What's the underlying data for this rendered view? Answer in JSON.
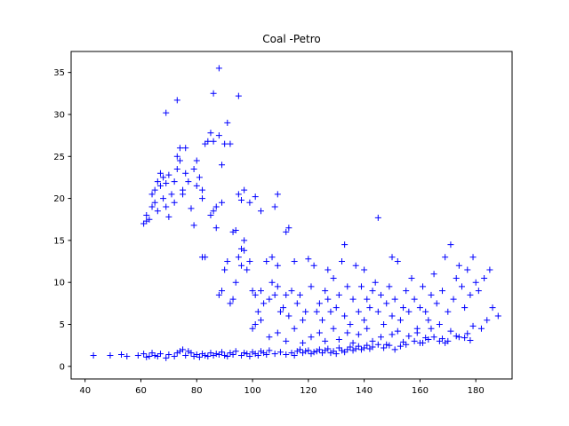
{
  "chart_data": {
    "type": "scatter",
    "title": "Coal -Petro",
    "xlabel": "",
    "ylabel": "",
    "xlim": [
      35,
      193
    ],
    "ylim": [
      -1.5,
      37.5
    ],
    "xticks": [
      40,
      60,
      80,
      100,
      120,
      140,
      160,
      180
    ],
    "yticks": [
      0,
      5,
      10,
      15,
      20,
      25,
      30,
      35
    ],
    "marker": "+",
    "color": "#0000ff",
    "grid": false,
    "points": [
      [
        43,
        1.3
      ],
      [
        49,
        1.3
      ],
      [
        53,
        1.4
      ],
      [
        55,
        1.2
      ],
      [
        59,
        1.3
      ],
      [
        61,
        1.5
      ],
      [
        62,
        1.1
      ],
      [
        63,
        1.2
      ],
      [
        64,
        1.6
      ],
      [
        65,
        1.3
      ],
      [
        66,
        1.2
      ],
      [
        67,
        1.5
      ],
      [
        69,
        1.0
      ],
      [
        70,
        1.4
      ],
      [
        72,
        1.2
      ],
      [
        73,
        1.6
      ],
      [
        74,
        1.8
      ],
      [
        75,
        2.0
      ],
      [
        76,
        1.3
      ],
      [
        77,
        1.8
      ],
      [
        78,
        1.6
      ],
      [
        79,
        1.2
      ],
      [
        80,
        1.4
      ],
      [
        81,
        1.1
      ],
      [
        82,
        1.5
      ],
      [
        83,
        1.3
      ],
      [
        84,
        1.2
      ],
      [
        85,
        1.6
      ],
      [
        86,
        1.3
      ],
      [
        87,
        1.5
      ],
      [
        88,
        1.4
      ],
      [
        89,
        1.7
      ],
      [
        90,
        1.3
      ],
      [
        91,
        1.2
      ],
      [
        92,
        1.6
      ],
      [
        93,
        1.4
      ],
      [
        94,
        1.8
      ],
      [
        96,
        1.3
      ],
      [
        97,
        1.6
      ],
      [
        98,
        1.5
      ],
      [
        99,
        1.2
      ],
      [
        100,
        1.7
      ],
      [
        101,
        1.5
      ],
      [
        102,
        1.3
      ],
      [
        103,
        1.8
      ],
      [
        104,
        1.6
      ],
      [
        105,
        1.4
      ],
      [
        106,
        1.9
      ],
      [
        108,
        1.5
      ],
      [
        110,
        1.7
      ],
      [
        112,
        1.4
      ],
      [
        114,
        1.6
      ],
      [
        115,
        1.3
      ],
      [
        116,
        1.8
      ],
      [
        117,
        2.0
      ],
      [
        118,
        1.6
      ],
      [
        119,
        1.8
      ],
      [
        120,
        1.9
      ],
      [
        121,
        1.5
      ],
      [
        122,
        1.7
      ],
      [
        123,
        1.8
      ],
      [
        124,
        2.0
      ],
      [
        125,
        1.6
      ],
      [
        126,
        1.9
      ],
      [
        127,
        2.1
      ],
      [
        128,
        1.6
      ],
      [
        129,
        1.8
      ],
      [
        130,
        1.5
      ],
      [
        131,
        2.2
      ],
      [
        132,
        1.9
      ],
      [
        133,
        1.7
      ],
      [
        134,
        2.0
      ],
      [
        135,
        2.3
      ],
      [
        136,
        1.9
      ],
      [
        137,
        2.1
      ],
      [
        138,
        2.4
      ],
      [
        139,
        2.0
      ],
      [
        140,
        2.2
      ],
      [
        141,
        2.5
      ],
      [
        142,
        2.1
      ],
      [
        143,
        2.3
      ],
      [
        145,
        2.6
      ],
      [
        147,
        2.2
      ],
      [
        149,
        2.5
      ],
      [
        151,
        2.0
      ],
      [
        153,
        2.4
      ],
      [
        155,
        2.6
      ],
      [
        158,
        3.0
      ],
      [
        160,
        2.8
      ],
      [
        163,
        3.2
      ],
      [
        165,
        3.5
      ],
      [
        168,
        3.3
      ],
      [
        170,
        3.0
      ],
      [
        173,
        3.6
      ],
      [
        176,
        3.4
      ],
      [
        178,
        3.1
      ],
      [
        61,
        17.0
      ],
      [
        62,
        17.3
      ],
      [
        62,
        18.0
      ],
      [
        63,
        17.5
      ],
      [
        64,
        19.0
      ],
      [
        64,
        20.5
      ],
      [
        65,
        21.0
      ],
      [
        65,
        19.5
      ],
      [
        66,
        22.0
      ],
      [
        66,
        18.5
      ],
      [
        67,
        21.5
      ],
      [
        67,
        23.0
      ],
      [
        68,
        20.0
      ],
      [
        68,
        22.5
      ],
      [
        69,
        19.0
      ],
      [
        69,
        21.8
      ],
      [
        70,
        22.8
      ],
      [
        70,
        17.8
      ],
      [
        71,
        20.5
      ],
      [
        72,
        19.5
      ],
      [
        72,
        22.0
      ],
      [
        73,
        25.0
      ],
      [
        73,
        23.5
      ],
      [
        74,
        26.0
      ],
      [
        74,
        24.5
      ],
      [
        75,
        21.0
      ],
      [
        75,
        20.5
      ],
      [
        76,
        26.0
      ],
      [
        76,
        23.0
      ],
      [
        77,
        22.0
      ],
      [
        78,
        18.8
      ],
      [
        79,
        16.8
      ],
      [
        79,
        23.5
      ],
      [
        80,
        24.5
      ],
      [
        80,
        21.5
      ],
      [
        81,
        22.5
      ],
      [
        82,
        20.0
      ],
      [
        82,
        21.0
      ],
      [
        83,
        26.5
      ],
      [
        84,
        26.8
      ],
      [
        85,
        18.0
      ],
      [
        85,
        27.8
      ],
      [
        86,
        26.8
      ],
      [
        86,
        18.5
      ],
      [
        87,
        19.0
      ],
      [
        87,
        16.5
      ],
      [
        88,
        27.5
      ],
      [
        89,
        24.0
      ],
      [
        89,
        19.5
      ],
      [
        90,
        26.5
      ],
      [
        91,
        29.0
      ],
      [
        92,
        26.5
      ],
      [
        93,
        16.0
      ],
      [
        94,
        16.2
      ],
      [
        95,
        20.5
      ],
      [
        96,
        19.8
      ],
      [
        97,
        21.0
      ],
      [
        99,
        19.5
      ],
      [
        101,
        20.2
      ],
      [
        103,
        18.5
      ],
      [
        108,
        19.0
      ],
      [
        109,
        20.5
      ],
      [
        112,
        16.0
      ],
      [
        113,
        16.5
      ],
      [
        69,
        30.2
      ],
      [
        73,
        31.7
      ],
      [
        86,
        32.5
      ],
      [
        88,
        35.5
      ],
      [
        95,
        32.2
      ],
      [
        82,
        13.0
      ],
      [
        83,
        13.0
      ],
      [
        88,
        8.5
      ],
      [
        89,
        9.0
      ],
      [
        90,
        11.5
      ],
      [
        91,
        12.5
      ],
      [
        92,
        7.5
      ],
      [
        93,
        8.0
      ],
      [
        94,
        10.0
      ],
      [
        95,
        13.0
      ],
      [
        96,
        12.0
      ],
      [
        96,
        14.0
      ],
      [
        97,
        13.8
      ],
      [
        97,
        15.0
      ],
      [
        98,
        11.5
      ],
      [
        99,
        12.5
      ],
      [
        100,
        9.0
      ],
      [
        101,
        5.0
      ],
      [
        101,
        8.5
      ],
      [
        102,
        6.5
      ],
      [
        103,
        9.0
      ],
      [
        104,
        7.5
      ],
      [
        105,
        12.5
      ],
      [
        106,
        8.0
      ],
      [
        107,
        13.0
      ],
      [
        107,
        10.0
      ],
      [
        108,
        8.5
      ],
      [
        109,
        9.5
      ],
      [
        109,
        12.0
      ],
      [
        110,
        6.5
      ],
      [
        111,
        7.0
      ],
      [
        112,
        8.5
      ],
      [
        113,
        6.0
      ],
      [
        114,
        9.0
      ],
      [
        115,
        12.5
      ],
      [
        116,
        7.5
      ],
      [
        117,
        8.5
      ],
      [
        118,
        5.5
      ],
      [
        119,
        6.5
      ],
      [
        120,
        12.8
      ],
      [
        121,
        9.5
      ],
      [
        122,
        12.0
      ],
      [
        123,
        6.5
      ],
      [
        124,
        7.5
      ],
      [
        125,
        5.5
      ],
      [
        126,
        9.0
      ],
      [
        127,
        11.5
      ],
      [
        127,
        8.0
      ],
      [
        128,
        6.5
      ],
      [
        129,
        10.5
      ],
      [
        130,
        7.0
      ],
      [
        131,
        8.5
      ],
      [
        132,
        12.5
      ],
      [
        133,
        14.5
      ],
      [
        133,
        6.0
      ],
      [
        134,
        9.5
      ],
      [
        135,
        5.0
      ],
      [
        136,
        8.0
      ],
      [
        137,
        12.0
      ],
      [
        138,
        6.5
      ],
      [
        139,
        9.5
      ],
      [
        140,
        11.5
      ],
      [
        140,
        5.5
      ],
      [
        141,
        8.0
      ],
      [
        142,
        7.0
      ],
      [
        143,
        9.0
      ],
      [
        144,
        10.0
      ],
      [
        145,
        17.7
      ],
      [
        145,
        6.5
      ],
      [
        146,
        8.5
      ],
      [
        147,
        5.0
      ],
      [
        148,
        7.5
      ],
      [
        149,
        9.5
      ],
      [
        150,
        13.0
      ],
      [
        150,
        6.0
      ],
      [
        151,
        8.0
      ],
      [
        152,
        12.5
      ],
      [
        153,
        5.5
      ],
      [
        154,
        7.0
      ],
      [
        155,
        9.0
      ],
      [
        156,
        6.5
      ],
      [
        157,
        10.5
      ],
      [
        158,
        8.0
      ],
      [
        159,
        4.5
      ],
      [
        160,
        7.0
      ],
      [
        161,
        9.5
      ],
      [
        162,
        6.5
      ],
      [
        163,
        5.5
      ],
      [
        164,
        8.5
      ],
      [
        165,
        11.0
      ],
      [
        166,
        7.5
      ],
      [
        167,
        5.0
      ],
      [
        168,
        9.0
      ],
      [
        169,
        13.0
      ],
      [
        170,
        6.5
      ],
      [
        171,
        14.5
      ],
      [
        172,
        8.0
      ],
      [
        173,
        10.5
      ],
      [
        174,
        12.0
      ],
      [
        175,
        9.5
      ],
      [
        176,
        7.0
      ],
      [
        177,
        11.5
      ],
      [
        178,
        8.5
      ],
      [
        179,
        13.0
      ],
      [
        180,
        10.0
      ],
      [
        181,
        9.0
      ],
      [
        182,
        4.5
      ],
      [
        183,
        10.5
      ],
      [
        184,
        5.5
      ],
      [
        185,
        11.5
      ],
      [
        186,
        7.0
      ],
      [
        188,
        6.0
      ],
      [
        100,
        4.5
      ],
      [
        103,
        5.5
      ],
      [
        106,
        3.5
      ],
      [
        109,
        4.0
      ],
      [
        112,
        3.0
      ],
      [
        115,
        4.5
      ],
      [
        118,
        2.8
      ],
      [
        121,
        3.5
      ],
      [
        124,
        4.0
      ],
      [
        126,
        3.0
      ],
      [
        129,
        4.5
      ],
      [
        131,
        3.2
      ],
      [
        134,
        4.0
      ],
      [
        136,
        2.8
      ],
      [
        138,
        3.8
      ],
      [
        141,
        4.5
      ],
      [
        143,
        3.0
      ],
      [
        146,
        3.5
      ],
      [
        148,
        2.6
      ],
      [
        150,
        3.8
      ],
      [
        152,
        4.2
      ],
      [
        154,
        2.9
      ],
      [
        156,
        3.6
      ],
      [
        159,
        4.0
      ],
      [
        161,
        2.8
      ],
      [
        162,
        3.4
      ],
      [
        164,
        4.5
      ],
      [
        167,
        3.0
      ],
      [
        169,
        2.8
      ],
      [
        171,
        4.2
      ],
      [
        174,
        3.5
      ],
      [
        177,
        3.9
      ],
      [
        179,
        4.8
      ]
    ]
  }
}
